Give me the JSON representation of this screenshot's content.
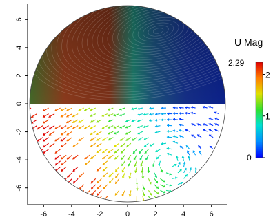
{
  "chart_data": {
    "type": "vector-field",
    "title": "",
    "xlabel": "",
    "ylabel": "",
    "xlim": [
      -7,
      7
    ],
    "ylim": [
      -7,
      7
    ],
    "x_ticks": [
      "-6",
      "-4",
      "-2",
      "0",
      "2",
      "4",
      "6"
    ],
    "x_tick_values": [
      -6,
      -4,
      -2,
      0,
      2,
      4,
      6
    ],
    "y_ticks": [
      "-6",
      "-4",
      "-2",
      "0",
      "2",
      "4",
      "6"
    ],
    "y_tick_values": [
      -6,
      -4,
      -2,
      0,
      2,
      4,
      6
    ],
    "domain": {
      "shape": "circle",
      "center": [
        0,
        0
      ],
      "radius": 7
    },
    "upper_half": {
      "style": "streamlines",
      "vortex_center": [
        2.2,
        5.2
      ]
    },
    "lower_half": {
      "style": "arrow-glyphs",
      "vortex_center": [
        3,
        -4.2
      ]
    },
    "colorbar": {
      "title": "U Mag",
      "min": 0,
      "max": 2.29,
      "max_label": "2.29",
      "min_label": "0",
      "ticks": [
        0,
        1,
        2
      ],
      "tick_labels": [
        "0",
        "1",
        "2"
      ],
      "colormap": [
        "#0000ff",
        "#00a0ff",
        "#00e0c0",
        "#30e030",
        "#e0e000",
        "#ff8000",
        "#e00000"
      ]
    },
    "grid": false,
    "legend": "colorbar-right"
  }
}
